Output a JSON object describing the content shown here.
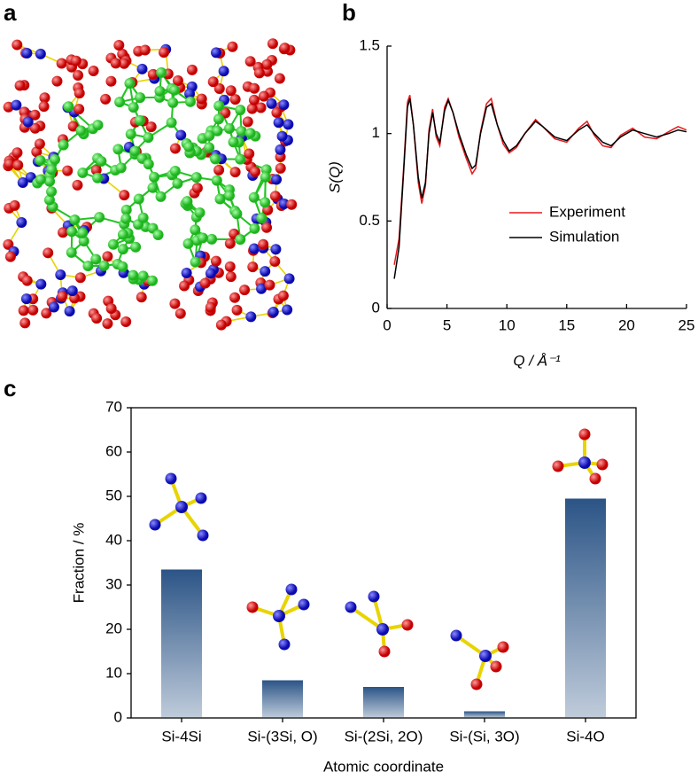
{
  "panel_labels": [
    "a",
    "b",
    "c"
  ],
  "chart_data": [
    {
      "type": "line",
      "xlabel": "Q / Å⁻¹",
      "ylabel": "S(Q)",
      "x": [
        0.6,
        1.0,
        1.4,
        1.7,
        1.9,
        2.2,
        2.6,
        2.9,
        3.2,
        3.5,
        3.8,
        4.1,
        4.4,
        4.8,
        5.1,
        5.5,
        6.0,
        6.6,
        7.1,
        7.4,
        7.8,
        8.3,
        8.7,
        9.2,
        9.7,
        10.2,
        10.8,
        11.5,
        12.4,
        13.0,
        14.0,
        15.0,
        16.0,
        16.7,
        17.3,
        18.0,
        18.7,
        19.5,
        20.5,
        21.5,
        22.5,
        23.5,
        24.3,
        25.0
      ],
      "series": [
        {
          "name": "Experiment",
          "color": "#e8191c",
          "values": [
            0.25,
            0.4,
            0.82,
            1.18,
            1.22,
            1.05,
            0.72,
            0.6,
            0.7,
            1.02,
            1.14,
            0.98,
            0.93,
            1.15,
            1.2,
            1.12,
            0.98,
            0.86,
            0.77,
            0.8,
            1.01,
            1.17,
            1.2,
            1.05,
            0.94,
            0.89,
            0.92,
            1.0,
            1.08,
            1.04,
            0.97,
            0.95,
            1.03,
            1.07,
            0.99,
            0.93,
            0.92,
            0.99,
            1.03,
            0.98,
            0.97,
            1.01,
            1.04,
            1.02
          ]
        },
        {
          "name": "Simulation",
          "color": "#000000",
          "values": [
            0.17,
            0.35,
            0.8,
            1.15,
            1.2,
            1.05,
            0.75,
            0.63,
            0.72,
            1.0,
            1.12,
            1.0,
            0.95,
            1.13,
            1.19,
            1.12,
            1.0,
            0.88,
            0.8,
            0.82,
            1.0,
            1.15,
            1.17,
            1.05,
            0.96,
            0.9,
            0.93,
            1.0,
            1.07,
            1.04,
            0.98,
            0.96,
            1.02,
            1.05,
            1.0,
            0.95,
            0.93,
            0.98,
            1.02,
            1.0,
            0.98,
            1.0,
            1.02,
            1.01
          ]
        }
      ],
      "xlim": [
        0,
        25
      ],
      "ylim": [
        0,
        1.5
      ],
      "xticks": [
        0,
        5,
        10,
        15,
        20,
        25
      ],
      "yticks": [
        0,
        0.5,
        1,
        1.5
      ]
    },
    {
      "type": "bar",
      "xlabel": "Atomic coordinate",
      "ylabel": "Fraction / %",
      "categories": [
        "Si-4Si",
        "Si-(3Si, O)",
        "Si-(2Si, 2O)",
        "Si-(Si, 3O)",
        "Si-4O"
      ],
      "values": [
        33.5,
        8.5,
        7,
        1.5,
        49.5
      ],
      "color": "#2b5486",
      "ylim": [
        0,
        70
      ],
      "yticks": [
        0,
        10,
        20,
        30,
        40,
        50,
        60,
        70
      ]
    }
  ]
}
